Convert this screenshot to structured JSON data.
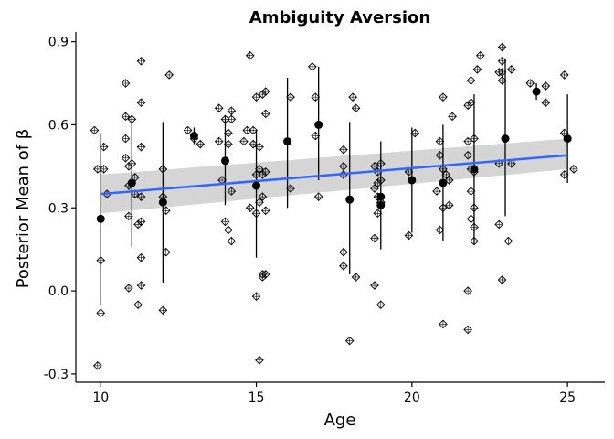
{
  "chart_data": {
    "type": "scatter",
    "title": "Ambiguity Aversion",
    "xlabel": "Age",
    "ylabel": "Posterior Mean of β",
    "xlim": [
      9.2,
      26.2
    ],
    "ylim": [
      -0.33,
      0.935
    ],
    "x_ticks": [
      10,
      15,
      20,
      25
    ],
    "x_tick_labels": [
      "10",
      "15",
      "20",
      "25"
    ],
    "y_ticks": [
      -0.3,
      0.0,
      0.3,
      0.6,
      0.9
    ],
    "y_tick_labels": [
      "-0.3",
      "0.0",
      "0.3",
      "0.6",
      "0.9"
    ],
    "grid": false,
    "legend": "none",
    "colors": {
      "points": "#000000",
      "trend": "#3366FF",
      "ribbon": "#BEBEBE",
      "axis": "#000000"
    },
    "individual_points": [
      [
        9.8,
        0.58
      ],
      [
        9.9,
        0.44
      ],
      [
        10.0,
        0.11
      ],
      [
        10.0,
        -0.08
      ],
      [
        9.9,
        -0.27
      ],
      [
        10.1,
        0.52
      ],
      [
        10.1,
        0.44
      ],
      [
        10.2,
        0.35
      ],
      [
        10.8,
        0.75
      ],
      [
        10.8,
        0.63
      ],
      [
        10.8,
        0.55
      ],
      [
        10.8,
        0.48
      ],
      [
        10.9,
        0.45
      ],
      [
        10.9,
        0.38
      ],
      [
        10.9,
        0.27
      ],
      [
        10.9,
        0.01
      ],
      [
        11.0,
        0.62
      ],
      [
        11.0,
        0.46
      ],
      [
        11.1,
        0.41
      ],
      [
        11.1,
        0.35
      ],
      [
        11.2,
        0.24
      ],
      [
        11.2,
        -0.05
      ],
      [
        11.3,
        0.83
      ],
      [
        11.3,
        0.68
      ],
      [
        11.3,
        0.52
      ],
      [
        11.3,
        0.34
      ],
      [
        11.3,
        0.25
      ],
      [
        11.3,
        0.12
      ],
      [
        11.3,
        0.02
      ],
      [
        12.0,
        0.34
      ],
      [
        12.0,
        0.44
      ],
      [
        12.0,
        -0.07
      ],
      [
        12.1,
        0.29
      ],
      [
        12.1,
        0.14
      ],
      [
        12.2,
        0.78
      ],
      [
        12.8,
        0.58
      ],
      [
        13.0,
        0.55
      ],
      [
        13.2,
        0.53
      ],
      [
        13.8,
        0.66
      ],
      [
        13.8,
        0.54
      ],
      [
        13.9,
        0.4
      ],
      [
        14.0,
        0.62
      ],
      [
        14.0,
        0.25
      ],
      [
        14.1,
        0.22
      ],
      [
        14.1,
        0.57
      ],
      [
        14.1,
        0.53
      ],
      [
        14.2,
        0.65
      ],
      [
        14.2,
        0.62
      ],
      [
        14.2,
        0.36
      ],
      [
        14.2,
        0.18
      ],
      [
        14.6,
        0.54
      ],
      [
        14.7,
        0.58
      ],
      [
        14.8,
        0.85
      ],
      [
        14.8,
        0.3
      ],
      [
        14.9,
        0.58
      ],
      [
        14.9,
        0.53
      ],
      [
        15.0,
        0.7
      ],
      [
        15.0,
        0.42
      ],
      [
        15.0,
        0.28
      ],
      [
        15.0,
        -0.02
      ],
      [
        15.1,
        0.52
      ],
      [
        15.1,
        0.44
      ],
      [
        15.1,
        0.32
      ],
      [
        15.1,
        -0.25
      ],
      [
        15.2,
        0.71
      ],
      [
        15.2,
        0.42
      ],
      [
        15.2,
        0.34
      ],
      [
        15.2,
        0.06
      ],
      [
        15.2,
        0.05
      ],
      [
        15.3,
        0.72
      ],
      [
        15.3,
        0.64
      ],
      [
        15.3,
        0.43
      ],
      [
        15.3,
        0.29
      ],
      [
        15.3,
        0.06
      ],
      [
        16.1,
        0.7
      ],
      [
        16.1,
        0.37
      ],
      [
        16.8,
        0.81
      ],
      [
        16.9,
        0.7
      ],
      [
        16.9,
        0.56
      ],
      [
        17.0,
        0.34
      ],
      [
        17.8,
        0.51
      ],
      [
        17.8,
        0.45
      ],
      [
        17.8,
        0.42
      ],
      [
        17.8,
        0.14
      ],
      [
        17.8,
        0.09
      ],
      [
        18.0,
        -0.18
      ],
      [
        18.1,
        0.7
      ],
      [
        18.2,
        0.66
      ],
      [
        18.2,
        0.05
      ],
      [
        18.8,
        0.45
      ],
      [
        18.8,
        0.37
      ],
      [
        18.8,
        0.02
      ],
      [
        18.8,
        0.19
      ],
      [
        18.9,
        0.43
      ],
      [
        18.9,
        0.39
      ],
      [
        18.9,
        0.34
      ],
      [
        18.9,
        0.28
      ],
      [
        19.0,
        0.46
      ],
      [
        19.0,
        0.4
      ],
      [
        19.0,
        0.32
      ],
      [
        19.0,
        -0.05
      ],
      [
        19.9,
        0.43
      ],
      [
        19.9,
        0.2
      ],
      [
        20.1,
        0.57
      ],
      [
        20.8,
        0.36
      ],
      [
        20.9,
        0.22
      ],
      [
        20.9,
        0.49
      ],
      [
        20.9,
        0.54
      ],
      [
        21.0,
        0.44
      ],
      [
        21.0,
        0.3
      ],
      [
        21.0,
        0.7
      ],
      [
        21.0,
        -0.12
      ],
      [
        21.1,
        0.42
      ],
      [
        21.2,
        0.31
      ],
      [
        21.2,
        0.4
      ],
      [
        21.3,
        0.63
      ],
      [
        21.8,
        0.67
      ],
      [
        21.8,
        0.54
      ],
      [
        21.8,
        0.49
      ],
      [
        21.8,
        0.0
      ],
      [
        21.8,
        -0.14
      ],
      [
        21.9,
        0.76
      ],
      [
        21.9,
        0.68
      ],
      [
        21.9,
        0.44
      ],
      [
        21.9,
        0.36
      ],
      [
        21.9,
        0.26
      ],
      [
        22.0,
        0.55
      ],
      [
        22.0,
        0.43
      ],
      [
        22.0,
        0.3
      ],
      [
        22.0,
        0.23
      ],
      [
        22.0,
        0.18
      ],
      [
        22.1,
        0.8
      ],
      [
        22.2,
        0.85
      ],
      [
        22.8,
        0.79
      ],
      [
        22.8,
        0.46
      ],
      [
        22.8,
        0.24
      ],
      [
        22.9,
        0.88
      ],
      [
        22.9,
        0.83
      ],
      [
        22.9,
        0.79
      ],
      [
        22.9,
        0.76
      ],
      [
        22.9,
        0.04
      ],
      [
        23.1,
        0.18
      ],
      [
        23.2,
        0.8
      ],
      [
        23.2,
        0.46
      ],
      [
        23.8,
        0.75
      ],
      [
        24.3,
        0.74
      ],
      [
        24.3,
        0.68
      ],
      [
        24.9,
        0.78
      ],
      [
        24.9,
        0.57
      ],
      [
        24.9,
        0.42
      ],
      [
        25.2,
        0.44
      ]
    ],
    "means": [
      {
        "x": 10,
        "y": 0.26,
        "lo": -0.05,
        "hi": 0.57
      },
      {
        "x": 11,
        "y": 0.39,
        "lo": 0.16,
        "hi": 0.63
      },
      {
        "x": 12,
        "y": 0.32,
        "lo": 0.03,
        "hi": 0.61
      },
      {
        "x": 13,
        "y": 0.56,
        "lo": 0.53,
        "hi": 0.59
      },
      {
        "x": 14,
        "y": 0.47,
        "lo": 0.31,
        "hi": 0.63
      },
      {
        "x": 15,
        "y": 0.38,
        "lo": 0.12,
        "hi": 0.58
      },
      {
        "x": 16,
        "y": 0.54,
        "lo": 0.3,
        "hi": 0.77
      },
      {
        "x": 17,
        "y": 0.6,
        "lo": 0.4,
        "hi": 0.81
      },
      {
        "x": 18,
        "y": 0.33,
        "lo": 0.06,
        "hi": 0.61
      },
      {
        "x": 19,
        "y": 0.34,
        "lo": 0.15,
        "hi": 0.54
      },
      {
        "x": 19.0,
        "y": 0.31,
        "lo": 0.31,
        "hi": 0.31
      },
      {
        "x": 20,
        "y": 0.4,
        "lo": 0.21,
        "hi": 0.59
      },
      {
        "x": 21,
        "y": 0.39,
        "lo": 0.18,
        "hi": 0.6
      },
      {
        "x": 22,
        "y": 0.44,
        "lo": 0.17,
        "hi": 0.71
      },
      {
        "x": 23,
        "y": 0.55,
        "lo": 0.27,
        "hi": 0.84
      },
      {
        "x": 24,
        "y": 0.72,
        "lo": 0.69,
        "hi": 0.75
      },
      {
        "x": 25,
        "y": 0.55,
        "lo": 0.39,
        "hi": 0.71
      }
    ],
    "trend": {
      "type": "linear",
      "x_range": [
        10,
        25
      ],
      "y_start": 0.35,
      "y_end": 0.49,
      "ribbon_lo": [
        0.28,
        0.44
      ],
      "ribbon_hi": [
        0.42,
        0.55
      ]
    }
  }
}
